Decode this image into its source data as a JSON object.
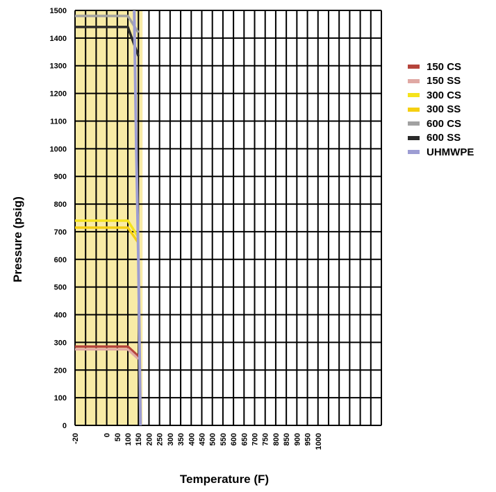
{
  "chart_data": {
    "type": "line",
    "xlabel": "Temperature (F)",
    "ylabel": "Pressure (psig)",
    "xlim": [
      -20,
      1000
    ],
    "ylim": [
      0,
      1500
    ],
    "x_ticks": [
      "-20",
      "0",
      "50",
      "100",
      "150",
      "200",
      "250",
      "300",
      "350",
      "400",
      "450",
      "500",
      "550",
      "600",
      "650",
      "700",
      "750",
      "800",
      "850",
      "900",
      "950",
      "1000"
    ],
    "y_ticks": [
      "0",
      "100",
      "200",
      "300",
      "400",
      "500",
      "600",
      "700",
      "800",
      "900",
      "1000",
      "1100",
      "1200",
      "1300",
      "1400",
      "1500"
    ],
    "grid": true,
    "legend_position": "right",
    "shaded_region": {
      "x_range": [
        -20,
        150
      ],
      "color": "#f8eba6",
      "series": "UHMWPE"
    },
    "series": [
      {
        "name": "150 CS",
        "color": "#b5443b",
        "points": [
          [
            -20,
            285
          ],
          [
            100,
            285
          ],
          [
            150,
            250
          ]
        ]
      },
      {
        "name": "150 SS",
        "color": "#e0a9a4",
        "points": [
          [
            -20,
            275
          ],
          [
            100,
            275
          ],
          [
            150,
            240
          ]
        ]
      },
      {
        "name": "300 CS",
        "color": "#f5e31c",
        "points": [
          [
            -20,
            740
          ],
          [
            100,
            740
          ],
          [
            150,
            680
          ]
        ]
      },
      {
        "name": "300 SS",
        "color": "#f5cf10",
        "points": [
          [
            -20,
            715
          ],
          [
            100,
            715
          ],
          [
            150,
            660
          ]
        ]
      },
      {
        "name": "600 CS",
        "color": "#a2a2a2",
        "points": [
          [
            -20,
            1480
          ],
          [
            100,
            1480
          ],
          [
            150,
            1420
          ]
        ]
      },
      {
        "name": "600 SS",
        "color": "#2a2a2a",
        "points": [
          [
            -20,
            1440
          ],
          [
            100,
            1440
          ],
          [
            150,
            1335
          ]
        ]
      },
      {
        "name": "UHMWPE",
        "color": "#9d9dd3",
        "points": [
          [
            130,
            1500
          ],
          [
            140,
            1000
          ],
          [
            150,
            600
          ],
          [
            160,
            0
          ]
        ]
      }
    ]
  }
}
